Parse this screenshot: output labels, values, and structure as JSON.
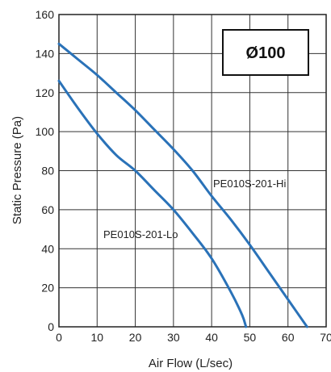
{
  "chart_data": {
    "type": "line",
    "title": "",
    "badge": "Ø100",
    "xlabel": "Air Flow (L/sec)",
    "ylabel": "Static Pressure (Pa)",
    "xlim": [
      0,
      70
    ],
    "ylim": [
      0,
      160
    ],
    "x_ticks": [
      "0",
      "10",
      "20",
      "30",
      "40",
      "50",
      "60",
      "70"
    ],
    "y_ticks": [
      "0",
      "20",
      "40",
      "60",
      "80",
      "100",
      "120",
      "140",
      "160"
    ],
    "grid": true,
    "line_color": "#2a72b8",
    "series": [
      {
        "name": "PE010S-201-Hi",
        "x": [
          0,
          5,
          10,
          15,
          20,
          25,
          30,
          35,
          40,
          45,
          50,
          55,
          60,
          65
        ],
        "y": [
          145,
          137,
          129,
          120,
          111,
          101,
          91,
          80,
          67,
          55,
          42,
          28,
          14,
          0
        ]
      },
      {
        "name": "PE010S-201-Lo",
        "x": [
          0,
          5,
          10,
          15,
          20,
          25,
          30,
          35,
          40,
          45,
          48,
          49
        ],
        "y": [
          126,
          112,
          99,
          88,
          80,
          70,
          60,
          48,
          35,
          18,
          6,
          0
        ]
      }
    ]
  }
}
